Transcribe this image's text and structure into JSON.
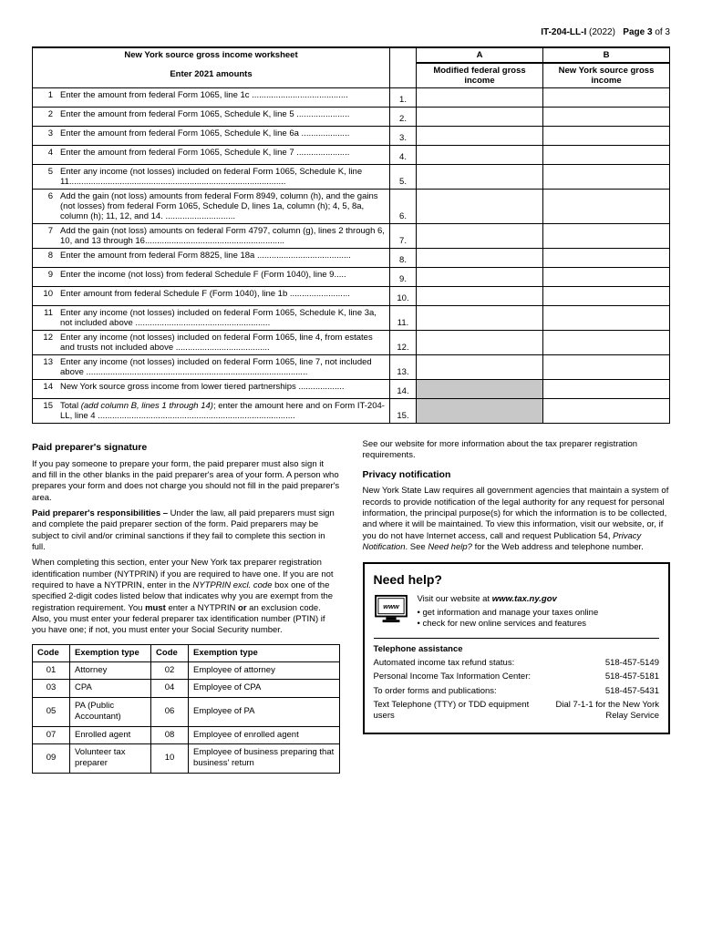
{
  "header": {
    "form_id": "IT-204-LL-I",
    "year": "(2022)",
    "page_label": "Page 3",
    "page_of": "of 3"
  },
  "worksheet": {
    "title": "New York source gross income worksheet",
    "subtitle": "Enter 2021 amounts",
    "col_a_top": "A",
    "col_a": "Modified federal gross income",
    "col_b_top": "B",
    "col_b": "New York source gross income",
    "rows": [
      {
        "n": "1",
        "desc": "Enter the amount from federal Form 1065, line 1c ........................................"
      },
      {
        "n": "2",
        "desc": "Enter the amount from federal Form 1065, Schedule K, line 5 ......................"
      },
      {
        "n": "3",
        "desc": "Enter the amount from federal Form 1065, Schedule K, line 6a ...................."
      },
      {
        "n": "4",
        "desc": "Enter the amount from federal Form 1065, Schedule K, line 7 ......................"
      },
      {
        "n": "5",
        "desc": "Enter any income (not losses) included on federal Form 1065, Schedule K, line 11.........................................................................................."
      },
      {
        "n": "6",
        "desc": "Add the gain (not loss) amounts from federal Form 8949, column (h), and the gains (not losses) from federal Form 1065, Schedule D, lines 1a, column (h); 4, 5, 8a, column (h); 11, 12, and 14. ............................."
      },
      {
        "n": "7",
        "desc": "Add the gain (not loss) amounts on federal Form 4797, column (g), lines 2 through 6, 10, and 13 through 16.........................................................."
      },
      {
        "n": "8",
        "desc": "Enter the amount from federal Form 8825, line 18a ......................................."
      },
      {
        "n": "9",
        "desc": "Enter the income (not loss) from federal Schedule F (Form 1040), line 9....."
      },
      {
        "n": "10",
        "desc": "Enter amount from federal Schedule F (Form 1040), line 1b ........................."
      },
      {
        "n": "11",
        "desc": "Enter any income (not losses) included on federal Form 1065, Schedule K, line 3a, not included above ........................................................"
      },
      {
        "n": "12",
        "desc": "Enter any income (not losses) included on federal Form 1065, line 4, from estates and trusts not included above ......................................."
      },
      {
        "n": "13",
        "desc": "Enter any income (not losses) included on federal Form 1065, line 7, not included above ............................................................................................"
      },
      {
        "n": "14",
        "desc": "New York source gross income from lower tiered partnerships ...................",
        "shade_a": true
      },
      {
        "n": "15",
        "desc_prefix": "Total ",
        "desc_italic": "(add column B, lines 1 through 14)",
        "desc_suffix": "; enter the amount here and on Form IT-204-LL, line 4 ..................................................................................",
        "shade_a": true
      }
    ]
  },
  "preparer": {
    "heading": "Paid preparer's signature",
    "p1": "If you pay someone to prepare your form, the paid preparer must also sign it and fill in the other blanks in the paid preparer's area of your form. A person who prepares your form and does not charge you should not fill in the paid preparer's area.",
    "p2_bold": "Paid preparer's responsibilities –",
    "p2": " Under the law, all paid preparers must sign and complete the paid preparer section of the form. Paid preparers may be subject to civil and/or criminal sanctions if they fail to complete this section in full.",
    "p3a": "When completing this section, enter your New York tax preparer registration identification number (NYTPRIN) if you are required to have one. If you are not required to have a NYTPRIN, enter in the ",
    "p3_italic": "NYTPRIN excl. code",
    "p3b": " box one of the specified 2-digit codes listed below that indicates why you are exempt from the registration requirement. You ",
    "p3_must": "must",
    "p3c": " enter a NYTPRIN ",
    "p3_or": "or",
    "p3d": " an exclusion code. Also, you must enter your federal preparer tax identification number (PTIN) if you have one; if not, you must enter your Social Security number."
  },
  "exemption": {
    "headers": {
      "code": "Code",
      "type": "Exemption type"
    },
    "rows": [
      [
        "01",
        "Attorney",
        "02",
        "Employee of attorney"
      ],
      [
        "03",
        "CPA",
        "04",
        "Employee of CPA"
      ],
      [
        "05",
        "PA (Public Accountant)",
        "06",
        "Employee of PA"
      ],
      [
        "07",
        "Enrolled agent",
        "08",
        "Employee of enrolled agent"
      ],
      [
        "09",
        "Volunteer tax preparer",
        "10",
        "Employee of business preparing that business' return"
      ]
    ]
  },
  "right_col": {
    "p1": "See our website for more information about the tax preparer registration requirements.",
    "privacy_head": "Privacy notification",
    "privacy_a": "New York State Law requires all government agencies that maintain a system of records to provide notification of the legal authority for any request for personal information, the principal purpose(s) for which the information is to be collected, and where it will be maintained. To view this information, visit our website, or, if you do not have Internet access, call and request Publication 54, ",
    "privacy_italic": "Privacy Notification",
    "privacy_b": ". See ",
    "privacy_italic2": "Need help?",
    "privacy_c": " for the Web address and telephone number."
  },
  "help": {
    "title": "Need help?",
    "visit_a": "Visit our website at ",
    "visit_url": "www.tax.ny.gov",
    "bullet1": "get information and manage your taxes online",
    "bullet2": "check for new online services and features",
    "phone_head": "Telephone assistance",
    "rows": [
      {
        "label": "Automated income tax refund status:",
        "val": "518-457-5149"
      },
      {
        "label": "Personal Income Tax Information Center:",
        "val": "518-457-5181"
      },
      {
        "label": "To order forms and publications:",
        "val": "518-457-5431"
      }
    ],
    "tty_label": "Text Telephone (TTY) or TDD equipment users",
    "tty_val": "Dial 7-1-1 for the New York Relay Service"
  }
}
